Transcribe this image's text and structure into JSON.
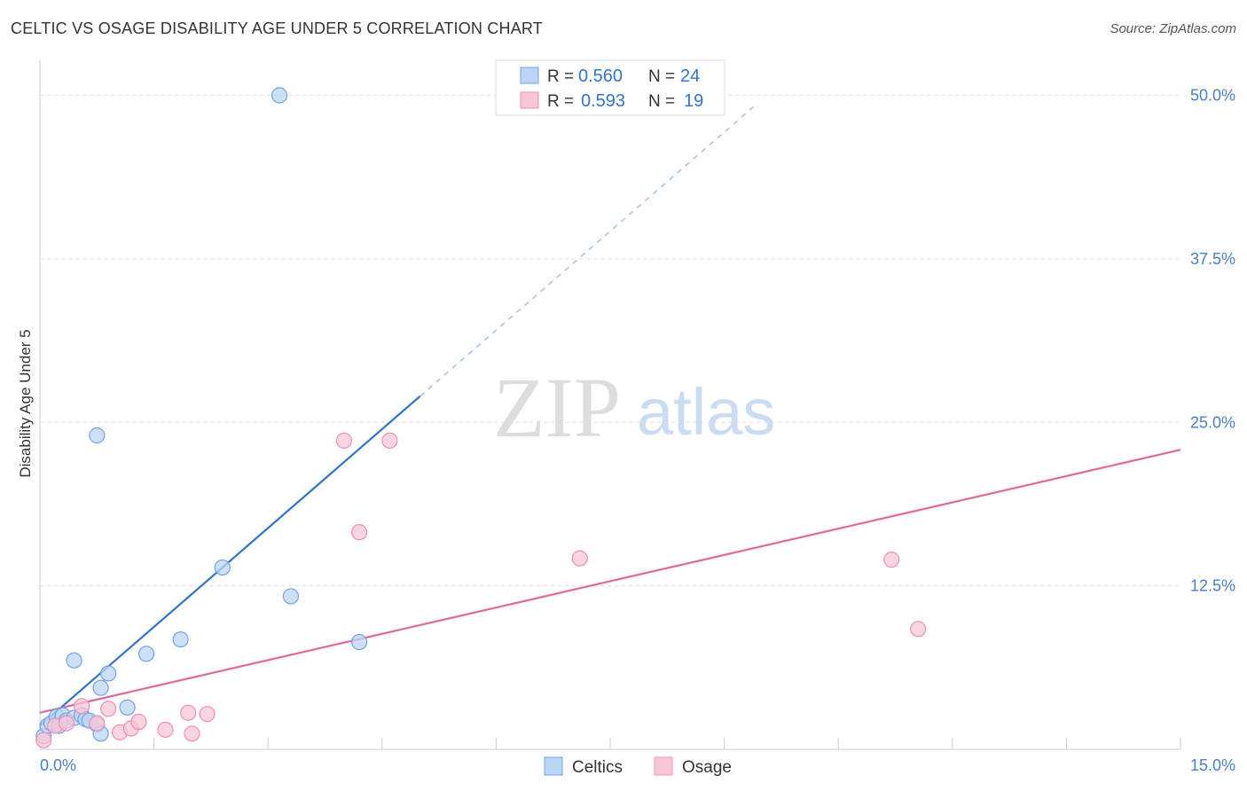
{
  "header": {
    "title": "CELTIC VS OSAGE DISABILITY AGE UNDER 5 CORRELATION CHART",
    "source": "Source: ZipAtlas.com"
  },
  "watermark": {
    "zip": "ZIP",
    "atlas": "atlas"
  },
  "legend_top": {
    "rows": [
      {
        "r_label": "R =",
        "r_value": "0.560",
        "n_label": "N =",
        "n_value": "24"
      },
      {
        "r_label": "R =",
        "r_value": "0.593",
        "n_label": "N =",
        "n_value": "19"
      }
    ]
  },
  "chart_data": {
    "type": "scatter",
    "title": "CELTIC VS OSAGE DISABILITY AGE UNDER 5 CORRELATION CHART",
    "xlabel": "",
    "ylabel": "Disability Age Under 5",
    "xlim": [
      0,
      15
    ],
    "ylim": [
      0,
      52
    ],
    "x_tick_labels": [
      "0.0%",
      "15.0%"
    ],
    "y_tick_values": [
      12.5,
      25.0,
      37.5,
      50.0
    ],
    "y_tick_labels": [
      "12.5%",
      "25.0%",
      "37.5%",
      "50.0%"
    ],
    "legend_position": "bottom-center",
    "series": [
      {
        "name": "Celtics",
        "color": "#6fa3e8",
        "fill": "#bcd5f5",
        "line_color": "#2f74d0",
        "trend": {
          "x0": 0.0,
          "y0": 1.8,
          "x1": 5.0,
          "y1": 27.0,
          "dash_to_x": 9.4,
          "dash_to_y": 49.2
        },
        "points": [
          [
            0.05,
            1.0
          ],
          [
            0.1,
            1.8
          ],
          [
            0.15,
            2.0
          ],
          [
            0.22,
            2.5
          ],
          [
            0.25,
            1.8
          ],
          [
            0.3,
            2.6
          ],
          [
            0.35,
            2.2
          ],
          [
            0.45,
            2.4
          ],
          [
            0.55,
            2.6
          ],
          [
            0.6,
            2.3
          ],
          [
            0.65,
            2.2
          ],
          [
            0.75,
            1.9
          ],
          [
            0.8,
            1.2
          ],
          [
            0.45,
            6.8
          ],
          [
            0.8,
            4.7
          ],
          [
            0.9,
            5.8
          ],
          [
            1.15,
            3.2
          ],
          [
            1.4,
            7.3
          ],
          [
            1.85,
            8.4
          ],
          [
            2.4,
            13.9
          ],
          [
            3.3,
            11.7
          ],
          [
            4.2,
            8.2
          ],
          [
            0.75,
            24.0
          ],
          [
            3.15,
            50.0
          ]
        ]
      },
      {
        "name": "Osage",
        "color": "#ee8fb0",
        "fill": "#f8c6d6",
        "line_color": "#e0689a",
        "trend": {
          "x0": 0.0,
          "y0": 2.8,
          "x1": 15.0,
          "y1": 22.9
        },
        "points": [
          [
            0.05,
            0.7
          ],
          [
            0.2,
            1.8
          ],
          [
            0.35,
            2.0
          ],
          [
            0.55,
            3.3
          ],
          [
            0.75,
            2.0
          ],
          [
            0.9,
            3.1
          ],
          [
            1.05,
            1.3
          ],
          [
            1.2,
            1.6
          ],
          [
            1.3,
            2.1
          ],
          [
            1.65,
            1.5
          ],
          [
            1.95,
            2.8
          ],
          [
            2.0,
            1.2
          ],
          [
            2.2,
            2.7
          ],
          [
            4.0,
            23.6
          ],
          [
            4.6,
            23.6
          ],
          [
            4.2,
            16.6
          ],
          [
            7.1,
            14.6
          ],
          [
            11.2,
            14.5
          ],
          [
            11.55,
            9.2
          ]
        ]
      }
    ]
  },
  "legend_bottom": {
    "items": [
      "Celtics",
      "Osage"
    ]
  }
}
